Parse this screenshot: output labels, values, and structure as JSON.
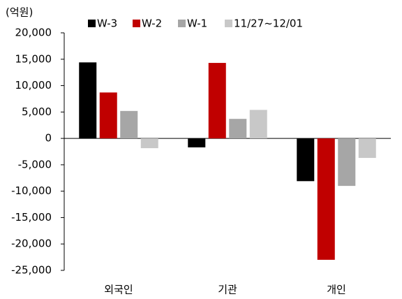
{
  "chart_data": {
    "type": "bar",
    "y_label": "(억원)",
    "categories": [
      "외국인",
      "기관",
      "개인"
    ],
    "series": [
      {
        "name": "W-3",
        "color": "#000000",
        "values": [
          14400,
          -1700,
          -8100
        ]
      },
      {
        "name": "W-2",
        "color": "#c00000",
        "values": [
          8700,
          14300,
          -23000
        ]
      },
      {
        "name": "W-1",
        "color": "#a6a6a6",
        "values": [
          5200,
          3700,
          -9000
        ]
      },
      {
        "name": "11/27~12/01",
        "color": "#c8c8c8",
        "values": [
          -1850,
          5400,
          -3700
        ]
      }
    ],
    "ylim": [
      -25000,
      20000
    ],
    "yticks": [
      {
        "value": 20000,
        "label": "20,000"
      },
      {
        "value": 15000,
        "label": "15,000"
      },
      {
        "value": 10000,
        "label": "10,000"
      },
      {
        "value": 5000,
        "label": "5,000"
      },
      0,
      {
        "value": -5000,
        "label": "-5,000"
      },
      {
        "value": -10000,
        "label": "-10,000"
      },
      {
        "value": -15000,
        "label": "-15,000"
      },
      {
        "value": -20000,
        "label": "-20,000"
      },
      {
        "value": -25000,
        "label": "-25,000"
      }
    ],
    "legend": "top"
  }
}
